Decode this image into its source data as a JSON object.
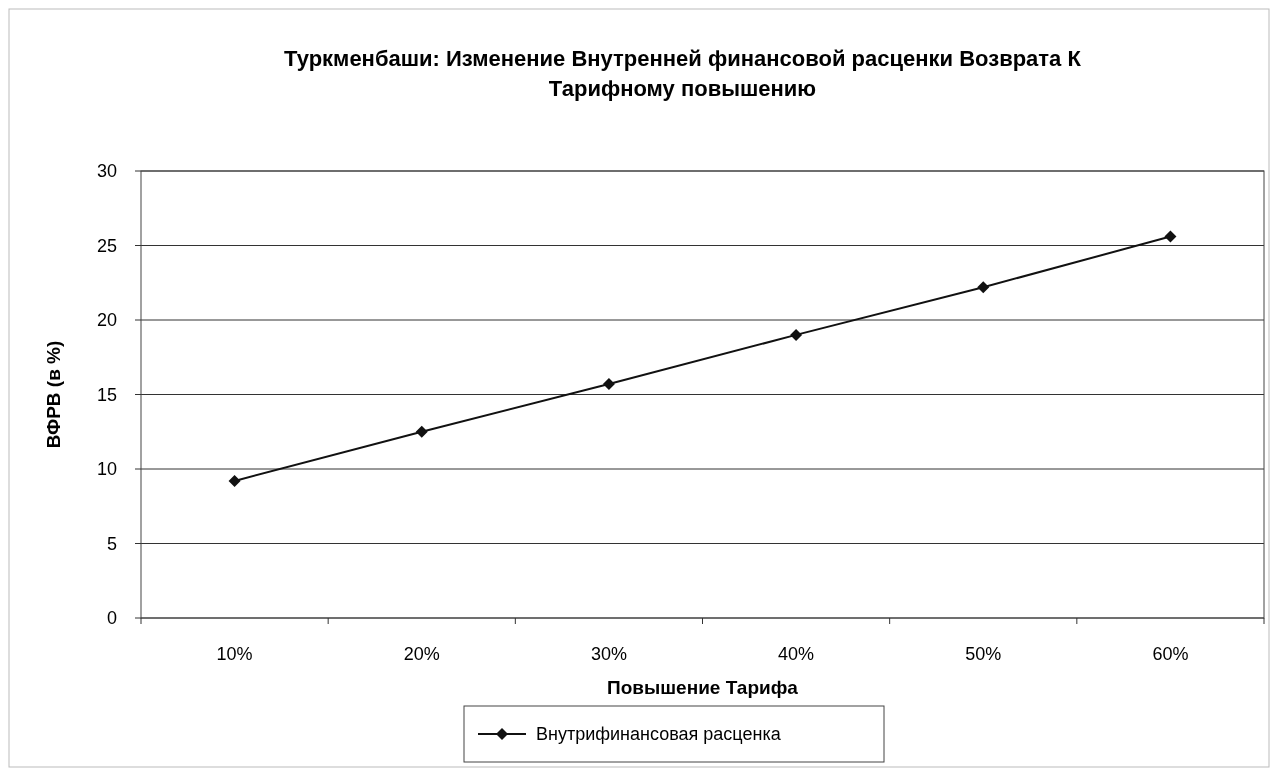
{
  "chart_data": {
    "type": "line",
    "title": "Туркменбаши: Изменение Внутренней финансовой расценки Возврата К Тарифному повышению",
    "xlabel": "Повышение Тарифа",
    "ylabel": "ВФРВ (в %)",
    "categories": [
      "10%",
      "20%",
      "30%",
      "40%",
      "50%",
      "60%"
    ],
    "series": [
      {
        "name": "Внутрифинансовая расценка",
        "color": "#111111",
        "values": [
          9.2,
          12.5,
          15.7,
          19.0,
          22.2,
          25.6
        ]
      }
    ],
    "ylim": [
      0,
      30
    ],
    "yticks": [
      0,
      5,
      10,
      15,
      20,
      25,
      30
    ],
    "grid": "y",
    "legend": "bottom",
    "marker": "diamond",
    "line_style": "solid"
  }
}
